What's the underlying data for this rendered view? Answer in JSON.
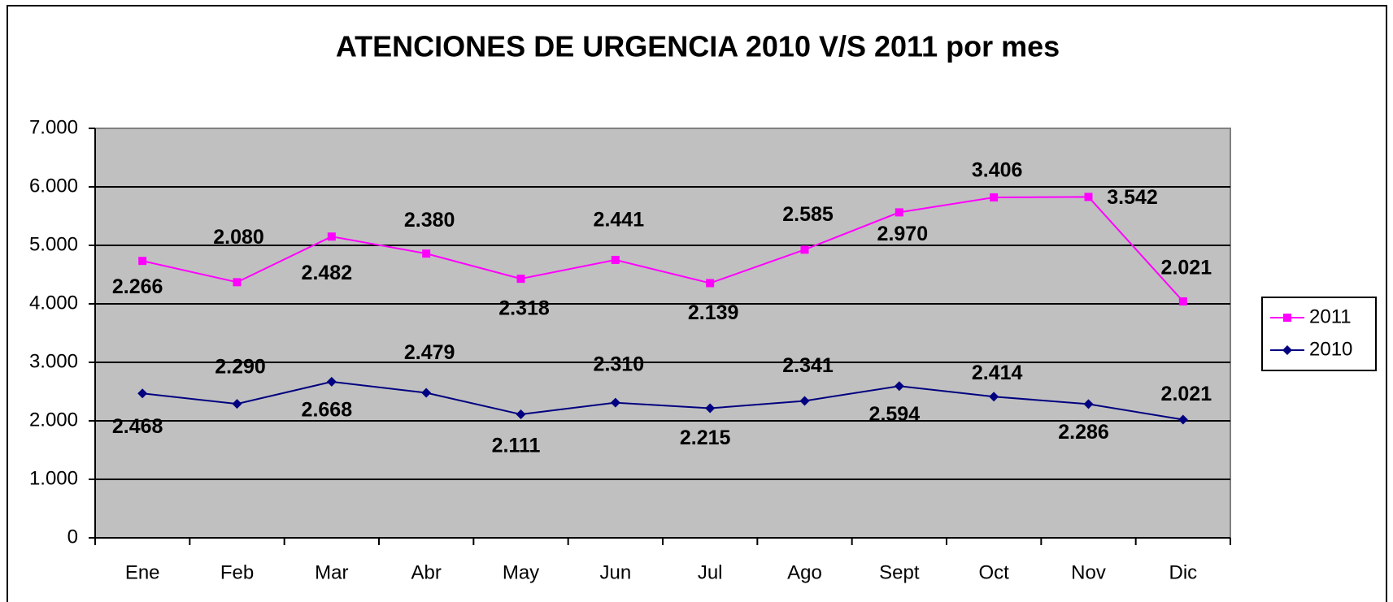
{
  "chart_data": {
    "type": "line",
    "stacked": true,
    "title": "ATENCIONES DE URGENCIA 2010 V/S 2011 por mes",
    "categories": [
      "Ene",
      "Feb",
      "Mar",
      "Abr",
      "May",
      "Jun",
      "Jul",
      "Ago",
      "Sept",
      "Oct",
      "Nov",
      "Dic"
    ],
    "series": [
      {
        "name": "2010",
        "color": "#000080",
        "marker": "diamond",
        "values": [
          2468,
          2290,
          2668,
          2479,
          2111,
          2310,
          2215,
          2341,
          2594,
          2414,
          2286,
          2021
        ],
        "value_labels": [
          "2.468",
          "2.290",
          "2.668",
          "2.479",
          "2.111",
          "2.310",
          "2.215",
          "2.341",
          "2.594",
          "2.414",
          "2.286",
          "2.021"
        ]
      },
      {
        "name": "2011",
        "color": "#ff00ff",
        "marker": "square",
        "values": [
          2266,
          2080,
          2482,
          2380,
          2318,
          2441,
          2139,
          2585,
          2970,
          3406,
          3542,
          2021
        ],
        "value_labels": [
          "2.266",
          "2.080",
          "2.482",
          "2.380",
          "2.318",
          "2.441",
          "2.139",
          "2.585",
          "2.970",
          "3.406",
          "3.542",
          "2.021"
        ]
      }
    ],
    "ylim": [
      0,
      7000
    ],
    "yticks": [
      0,
      {
        "value": 1000,
        "label": "1.000"
      },
      {
        "value": 2000,
        "label": "2.000"
      },
      {
        "value": 3000,
        "label": "3.000"
      },
      {
        "value": 4000,
        "label": "4.000"
      },
      {
        "value": 5000,
        "label": "5.000"
      },
      {
        "value": 6000,
        "label": "6.000"
      },
      {
        "value": 7000,
        "label": "7.000"
      }
    ],
    "grid": true,
    "legend": "right",
    "plot_background": "#c0c0c0"
  }
}
